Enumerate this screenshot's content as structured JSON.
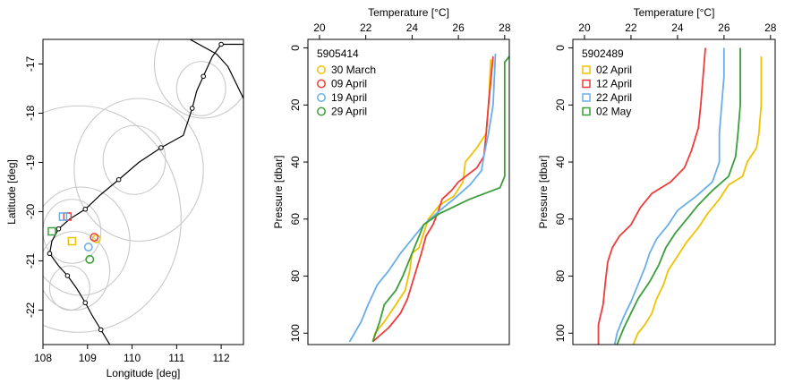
{
  "chart_data": [
    {
      "type": "scatter",
      "xlabel": "Longitude [deg]",
      "ylabel": "Latitude [deg]",
      "xlim": [
        108,
        112.5
      ],
      "ylim": [
        -22.7,
        -16.5
      ],
      "x_ticks": [
        108,
        109,
        110,
        111,
        112
      ],
      "y_ticks": [
        -17,
        -18,
        -19,
        -20,
        -21,
        -22
      ],
      "grid": false,
      "series": [
        {
          "kind": "typhoon-track",
          "color": "#000000",
          "points": [
            [
              112.5,
              -16.6
            ],
            [
              112.0,
              -16.6
            ],
            [
              111.8,
              -16.85
            ],
            [
              111.6,
              -17.25
            ],
            [
              111.45,
              -17.55
            ],
            [
              111.35,
              -17.9
            ],
            [
              111.15,
              -18.45
            ],
            [
              110.65,
              -18.7
            ],
            [
              110.15,
              -19.0
            ],
            [
              109.7,
              -19.35
            ],
            [
              109.3,
              -19.65
            ],
            [
              108.95,
              -19.95
            ],
            [
              108.6,
              -20.15
            ],
            [
              108.35,
              -20.35
            ],
            [
              108.2,
              -20.6
            ],
            [
              108.15,
              -20.85
            ],
            [
              108.35,
              -21.1
            ],
            [
              108.55,
              -21.3
            ],
            [
              108.75,
              -21.55
            ],
            [
              108.95,
              -21.85
            ],
            [
              109.1,
              -22.1
            ],
            [
              109.3,
              -22.4
            ],
            [
              109.5,
              -22.7
            ]
          ]
        },
        {
          "kind": "second-track",
          "color": "#000000",
          "points": [
            [
              111.3,
              -16.5
            ],
            [
              111.9,
              -16.8
            ],
            [
              112.15,
              -17.05
            ],
            [
              112.5,
              -17.7
            ]
          ]
        },
        {
          "kind": "range-circles",
          "color": "#c8c8c8",
          "circles": [
            [
              111.55,
              -17.5,
              0.55
            ],
            [
              111.6,
              -17.0,
              1.1
            ],
            [
              110.05,
              -18.95,
              0.7
            ],
            [
              110.15,
              -19.15,
              1.45
            ],
            [
              108.65,
              -20.4,
              0.65
            ],
            [
              108.85,
              -20.6,
              1.1
            ],
            [
              108.8,
              -20.15,
              2.3
            ],
            [
              108.6,
              -21.55,
              0.45
            ],
            [
              108.7,
              -21.2,
              0.8
            ]
          ]
        },
        {
          "kind": "float-positions",
          "markers": [
            {
              "shape": "circle",
              "color": "#f2c200",
              "lon": 109.2,
              "lat": -20.55
            },
            {
              "shape": "circle",
              "color": "#ee3b3b",
              "lon": 109.15,
              "lat": -20.52
            },
            {
              "shape": "circle",
              "color": "#6aaee8",
              "lon": 109.02,
              "lat": -20.72
            },
            {
              "shape": "circle",
              "color": "#3a9e3a",
              "lon": 109.05,
              "lat": -20.97
            },
            {
              "shape": "square",
              "color": "#f2c200",
              "lon": 108.65,
              "lat": -20.6
            },
            {
              "shape": "square",
              "color": "#ee3b3b",
              "lon": 108.55,
              "lat": -20.1
            },
            {
              "shape": "square",
              "color": "#6aaee8",
              "lon": 108.45,
              "lat": -20.1
            },
            {
              "shape": "square",
              "color": "#3a9e3a",
              "lon": 108.2,
              "lat": -20.4
            }
          ]
        }
      ]
    },
    {
      "type": "line",
      "float_id": "5905414",
      "xlabel": "Temperature [°C]",
      "ylabel": "Pressure [dbar]",
      "xlim": [
        19.5,
        28.2
      ],
      "ylim": [
        104,
        -3
      ],
      "x_ticks": [
        20,
        22,
        24,
        26,
        28
      ],
      "y_ticks": [
        0,
        20,
        40,
        60,
        80,
        100
      ],
      "legend_position": "top-left",
      "legend_marker": "circle",
      "series": [
        {
          "name": "30 March",
          "color": "#f2c200",
          "points": [
            [
              27.4,
              4
            ],
            [
              27.3,
              20
            ],
            [
              27.2,
              30
            ],
            [
              26.8,
              35
            ],
            [
              26.3,
              40
            ],
            [
              26.2,
              47
            ],
            [
              25.8,
              52
            ],
            [
              25.2,
              55
            ],
            [
              24.7,
              60
            ],
            [
              24.5,
              65
            ],
            [
              24.3,
              70
            ],
            [
              24.0,
              72
            ],
            [
              23.9,
              78
            ],
            [
              23.7,
              85
            ],
            [
              23.3,
              90
            ],
            [
              22.8,
              96
            ],
            [
              22.4,
              100
            ],
            [
              22.3,
              103
            ]
          ]
        },
        {
          "name": "09 April",
          "color": "#ee3b3b",
          "points": [
            [
              27.5,
              3
            ],
            [
              27.3,
              20
            ],
            [
              27.2,
              30
            ],
            [
              27.1,
              38
            ],
            [
              26.8,
              42
            ],
            [
              26.0,
              47
            ],
            [
              25.7,
              50
            ],
            [
              25.3,
              53
            ],
            [
              25.1,
              58
            ],
            [
              24.9,
              62
            ],
            [
              24.6,
              66
            ],
            [
              24.4,
              72
            ],
            [
              24.1,
              80
            ],
            [
              23.8,
              88
            ],
            [
              23.5,
              93
            ],
            [
              23.0,
              98
            ],
            [
              22.3,
              103
            ]
          ]
        },
        {
          "name": "19 April",
          "color": "#6aaee8",
          "points": [
            [
              27.6,
              2
            ],
            [
              27.5,
              20
            ],
            [
              27.3,
              30
            ],
            [
              27.1,
              38
            ],
            [
              27.0,
              43
            ],
            [
              26.5,
              48
            ],
            [
              25.8,
              53
            ],
            [
              25.2,
              57
            ],
            [
              24.5,
              62
            ],
            [
              24.0,
              67
            ],
            [
              23.5,
              72
            ],
            [
              23.0,
              78
            ],
            [
              22.5,
              83
            ],
            [
              22.1,
              90
            ],
            [
              21.8,
              96
            ],
            [
              21.3,
              103
            ]
          ]
        },
        {
          "name": "29 April",
          "color": "#3a9e3a",
          "points": [
            [
              28.2,
              3
            ],
            [
              28.0,
              5
            ],
            [
              28.0,
              20
            ],
            [
              28.0,
              45
            ],
            [
              27.8,
              49
            ],
            [
              26.5,
              53
            ],
            [
              25.2,
              58
            ],
            [
              24.5,
              62
            ],
            [
              24.2,
              68
            ],
            [
              23.9,
              74
            ],
            [
              23.6,
              80
            ],
            [
              23.3,
              85
            ],
            [
              22.8,
              90
            ],
            [
              22.6,
              96
            ],
            [
              22.3,
              103
            ]
          ]
        }
      ]
    },
    {
      "type": "line",
      "float_id": "5902489",
      "xlabel": "Temperature [°C]",
      "ylabel": "Pressure [dbar]",
      "xlim": [
        19.5,
        28.2
      ],
      "ylim": [
        104,
        -3
      ],
      "x_ticks": [
        20,
        22,
        24,
        26,
        28
      ],
      "y_ticks": [
        0,
        20,
        40,
        60,
        80,
        100
      ],
      "legend_position": "top-left",
      "legend_marker": "square",
      "series": [
        {
          "name": "02 April",
          "color": "#f2c200",
          "points": [
            [
              27.6,
              3
            ],
            [
              27.6,
              20
            ],
            [
              27.5,
              30
            ],
            [
              27.4,
              35
            ],
            [
              27.0,
              40
            ],
            [
              26.8,
              45
            ],
            [
              26.2,
              48
            ],
            [
              25.8,
              53
            ],
            [
              25.3,
              58
            ],
            [
              24.9,
              63
            ],
            [
              24.4,
              68
            ],
            [
              24.0,
              73
            ],
            [
              23.6,
              78
            ],
            [
              23.4,
              83
            ],
            [
              23.1,
              88
            ],
            [
              22.9,
              93
            ],
            [
              22.6,
              97
            ],
            [
              22.3,
              100
            ],
            [
              22.1,
              104
            ]
          ]
        },
        {
          "name": "12 April",
          "color": "#ee3b3b",
          "points": [
            [
              25.2,
              0
            ],
            [
              25.1,
              10
            ],
            [
              25.0,
              20
            ],
            [
              24.9,
              28
            ],
            [
              24.6,
              36
            ],
            [
              24.3,
              42
            ],
            [
              23.7,
              47
            ],
            [
              22.9,
              51
            ],
            [
              22.4,
              56
            ],
            [
              22.0,
              62
            ],
            [
              21.5,
              66
            ],
            [
              21.2,
              70
            ],
            [
              21.0,
              75
            ],
            [
              20.9,
              82
            ],
            [
              20.8,
              90
            ],
            [
              20.6,
              97
            ],
            [
              20.6,
              104
            ]
          ]
        },
        {
          "name": "22 April",
          "color": "#6aaee8",
          "points": [
            [
              26.0,
              0
            ],
            [
              26.0,
              10
            ],
            [
              25.9,
              20
            ],
            [
              25.8,
              30
            ],
            [
              25.8,
              40
            ],
            [
              25.5,
              47
            ],
            [
              24.8,
              52
            ],
            [
              24.0,
              57
            ],
            [
              23.6,
              62
            ],
            [
              23.1,
              67
            ],
            [
              22.8,
              72
            ],
            [
              22.6,
              77
            ],
            [
              22.3,
              83
            ],
            [
              22.0,
              89
            ],
            [
              21.7,
              94
            ],
            [
              21.4,
              100
            ],
            [
              21.3,
              104
            ]
          ]
        },
        {
          "name": "02 May",
          "color": "#3a9e3a",
          "points": [
            [
              26.7,
              0
            ],
            [
              26.7,
              10
            ],
            [
              26.7,
              20
            ],
            [
              26.6,
              30
            ],
            [
              26.5,
              38
            ],
            [
              26.2,
              45
            ],
            [
              25.5,
              50
            ],
            [
              24.9,
              55
            ],
            [
              24.4,
              60
            ],
            [
              23.9,
              65
            ],
            [
              23.5,
              70
            ],
            [
              23.2,
              76
            ],
            [
              22.8,
              82
            ],
            [
              22.3,
              88
            ],
            [
              22.0,
              93
            ],
            [
              21.7,
              98
            ],
            [
              21.4,
              104
            ]
          ]
        }
      ]
    }
  ]
}
